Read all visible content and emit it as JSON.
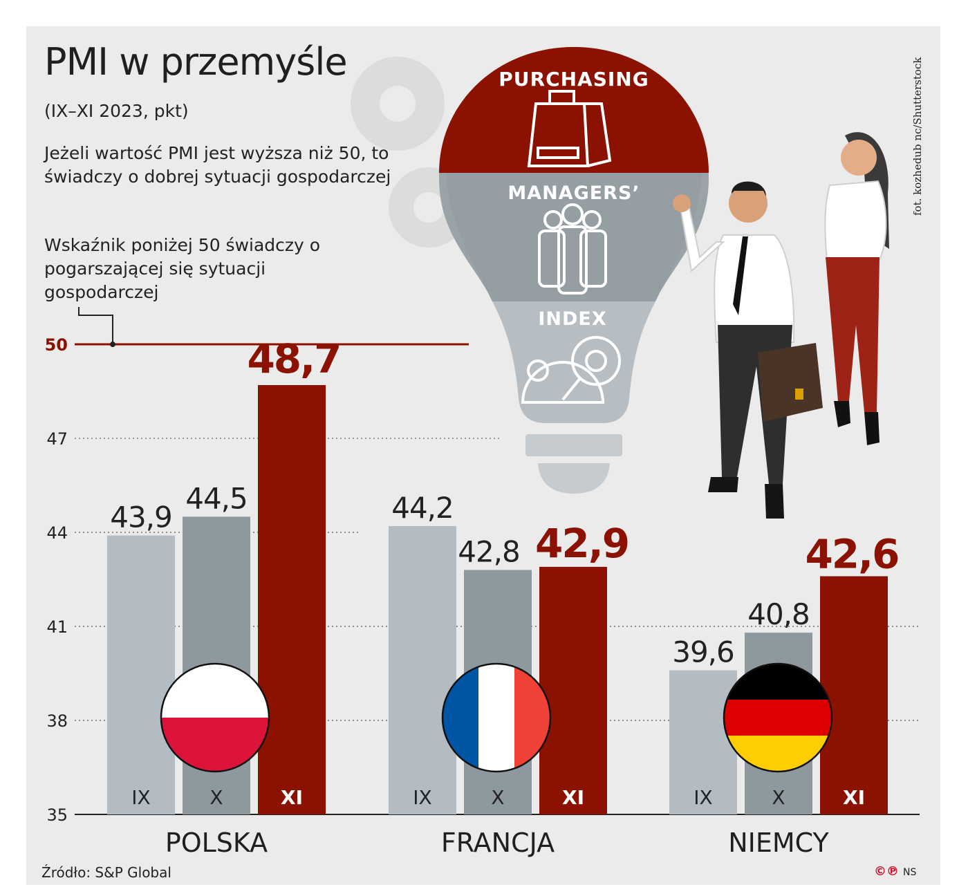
{
  "title": "PMI w przemyśle",
  "subtitle": "(IX–XI 2023, pkt)",
  "notes": {
    "above50": "Jeżeli wartość PMI jest wyższa niż 50, to świadczy o dobrej sytuacji gospodarczej",
    "below50": "Wskaźnik poniżej 50 świadczy o pogarszającej się sytuacji gospodarczej"
  },
  "source": "Źródło: S&P Global",
  "photo_credit": "fot. kozhedub nc/Shutterstock",
  "logo": {
    "mark": "©℗",
    "initials": "NS"
  },
  "illustration": {
    "bulb_words": [
      "PURCHASING",
      "MANAGERS’",
      "INDEX"
    ]
  },
  "colors": {
    "ix": "#b3bcc3",
    "x": "#8e999f",
    "xi": "#8b1200",
    "accent": "#8b1200"
  },
  "chart_data": {
    "type": "bar",
    "categories": [
      "POLSKA",
      "FRANCJA",
      "NIEMCY"
    ],
    "series": [
      {
        "name": "IX",
        "values": [
          43.9,
          44.2,
          39.6
        ],
        "labels": [
          "43,9",
          "44,2",
          "39,6"
        ]
      },
      {
        "name": "X",
        "values": [
          44.5,
          42.8,
          40.8
        ],
        "labels": [
          "44,5",
          "42,8",
          "40,8"
        ]
      },
      {
        "name": "XI",
        "values": [
          48.7,
          42.9,
          42.6
        ],
        "labels": [
          "48,7",
          "42,9",
          "42,6"
        ]
      }
    ],
    "ylim": [
      35,
      50
    ],
    "yticks": [
      35,
      38,
      41,
      44,
      47,
      50
    ],
    "reference_line": {
      "value": 50,
      "label": "50"
    },
    "grid": "dotted horizontal",
    "flags": [
      "Poland",
      "France",
      "Germany"
    ]
  }
}
